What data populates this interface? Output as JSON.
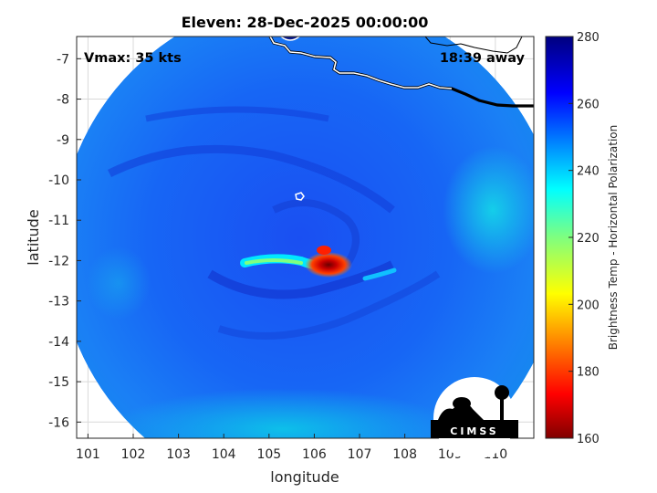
{
  "figure": {
    "title": "Eleven: 28-Dec-2025 00:00:00",
    "vmax_label": "Vmax: 35 kts",
    "away_label": "18:39 away",
    "logo_text": "CIMSS"
  },
  "chart_data": {
    "type": "heatmap",
    "xlabel": "longitude",
    "ylabel": "latitude",
    "xlim": [
      100.75,
      110.85
    ],
    "ylim": [
      -16.4,
      -6.45
    ],
    "x_ticks": [
      "101",
      "102",
      "103",
      "104",
      "105",
      "106",
      "107",
      "108",
      "109",
      "110"
    ],
    "y_ticks": [
      "-7",
      "-8",
      "-9",
      "-10",
      "-11",
      "-12",
      "-13",
      "-14",
      "-15",
      "-16"
    ],
    "grid": true,
    "swath": {
      "center_lon": 105.9,
      "center_lat": -11.7,
      "radius_deg": 5.55
    },
    "storm_core": {
      "lon": 106.3,
      "lat": -12.0,
      "min_brightness_temp": 170
    },
    "colorbar": {
      "label": "Brightness Temp - Horizontal Polarization",
      "min": 160,
      "max": 280,
      "ticks": [
        "160",
        "180",
        "200",
        "220",
        "240",
        "260",
        "280"
      ],
      "colormap": "jet"
    }
  },
  "colors": {
    "coastline": "#ffffff",
    "land_outline": "#000000",
    "grid": "#d9d9d9",
    "logo": "#000000"
  }
}
